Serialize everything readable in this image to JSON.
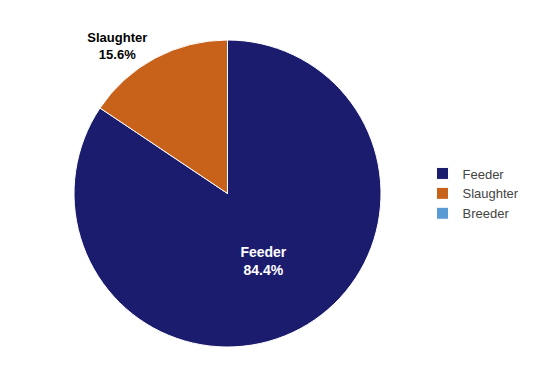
{
  "chart_data": {
    "type": "pie",
    "categories": [
      "Feeder",
      "Slaughter",
      "Breeder"
    ],
    "values": [
      84.4,
      15.6,
      0.0001
    ],
    "value_labels": [
      "Feeder\n84.4%",
      "Slaughter\n15.6%",
      null
    ],
    "colors": [
      "#1c1c6e",
      "#c8621b",
      "#5b9bd5"
    ],
    "legend": "right"
  }
}
